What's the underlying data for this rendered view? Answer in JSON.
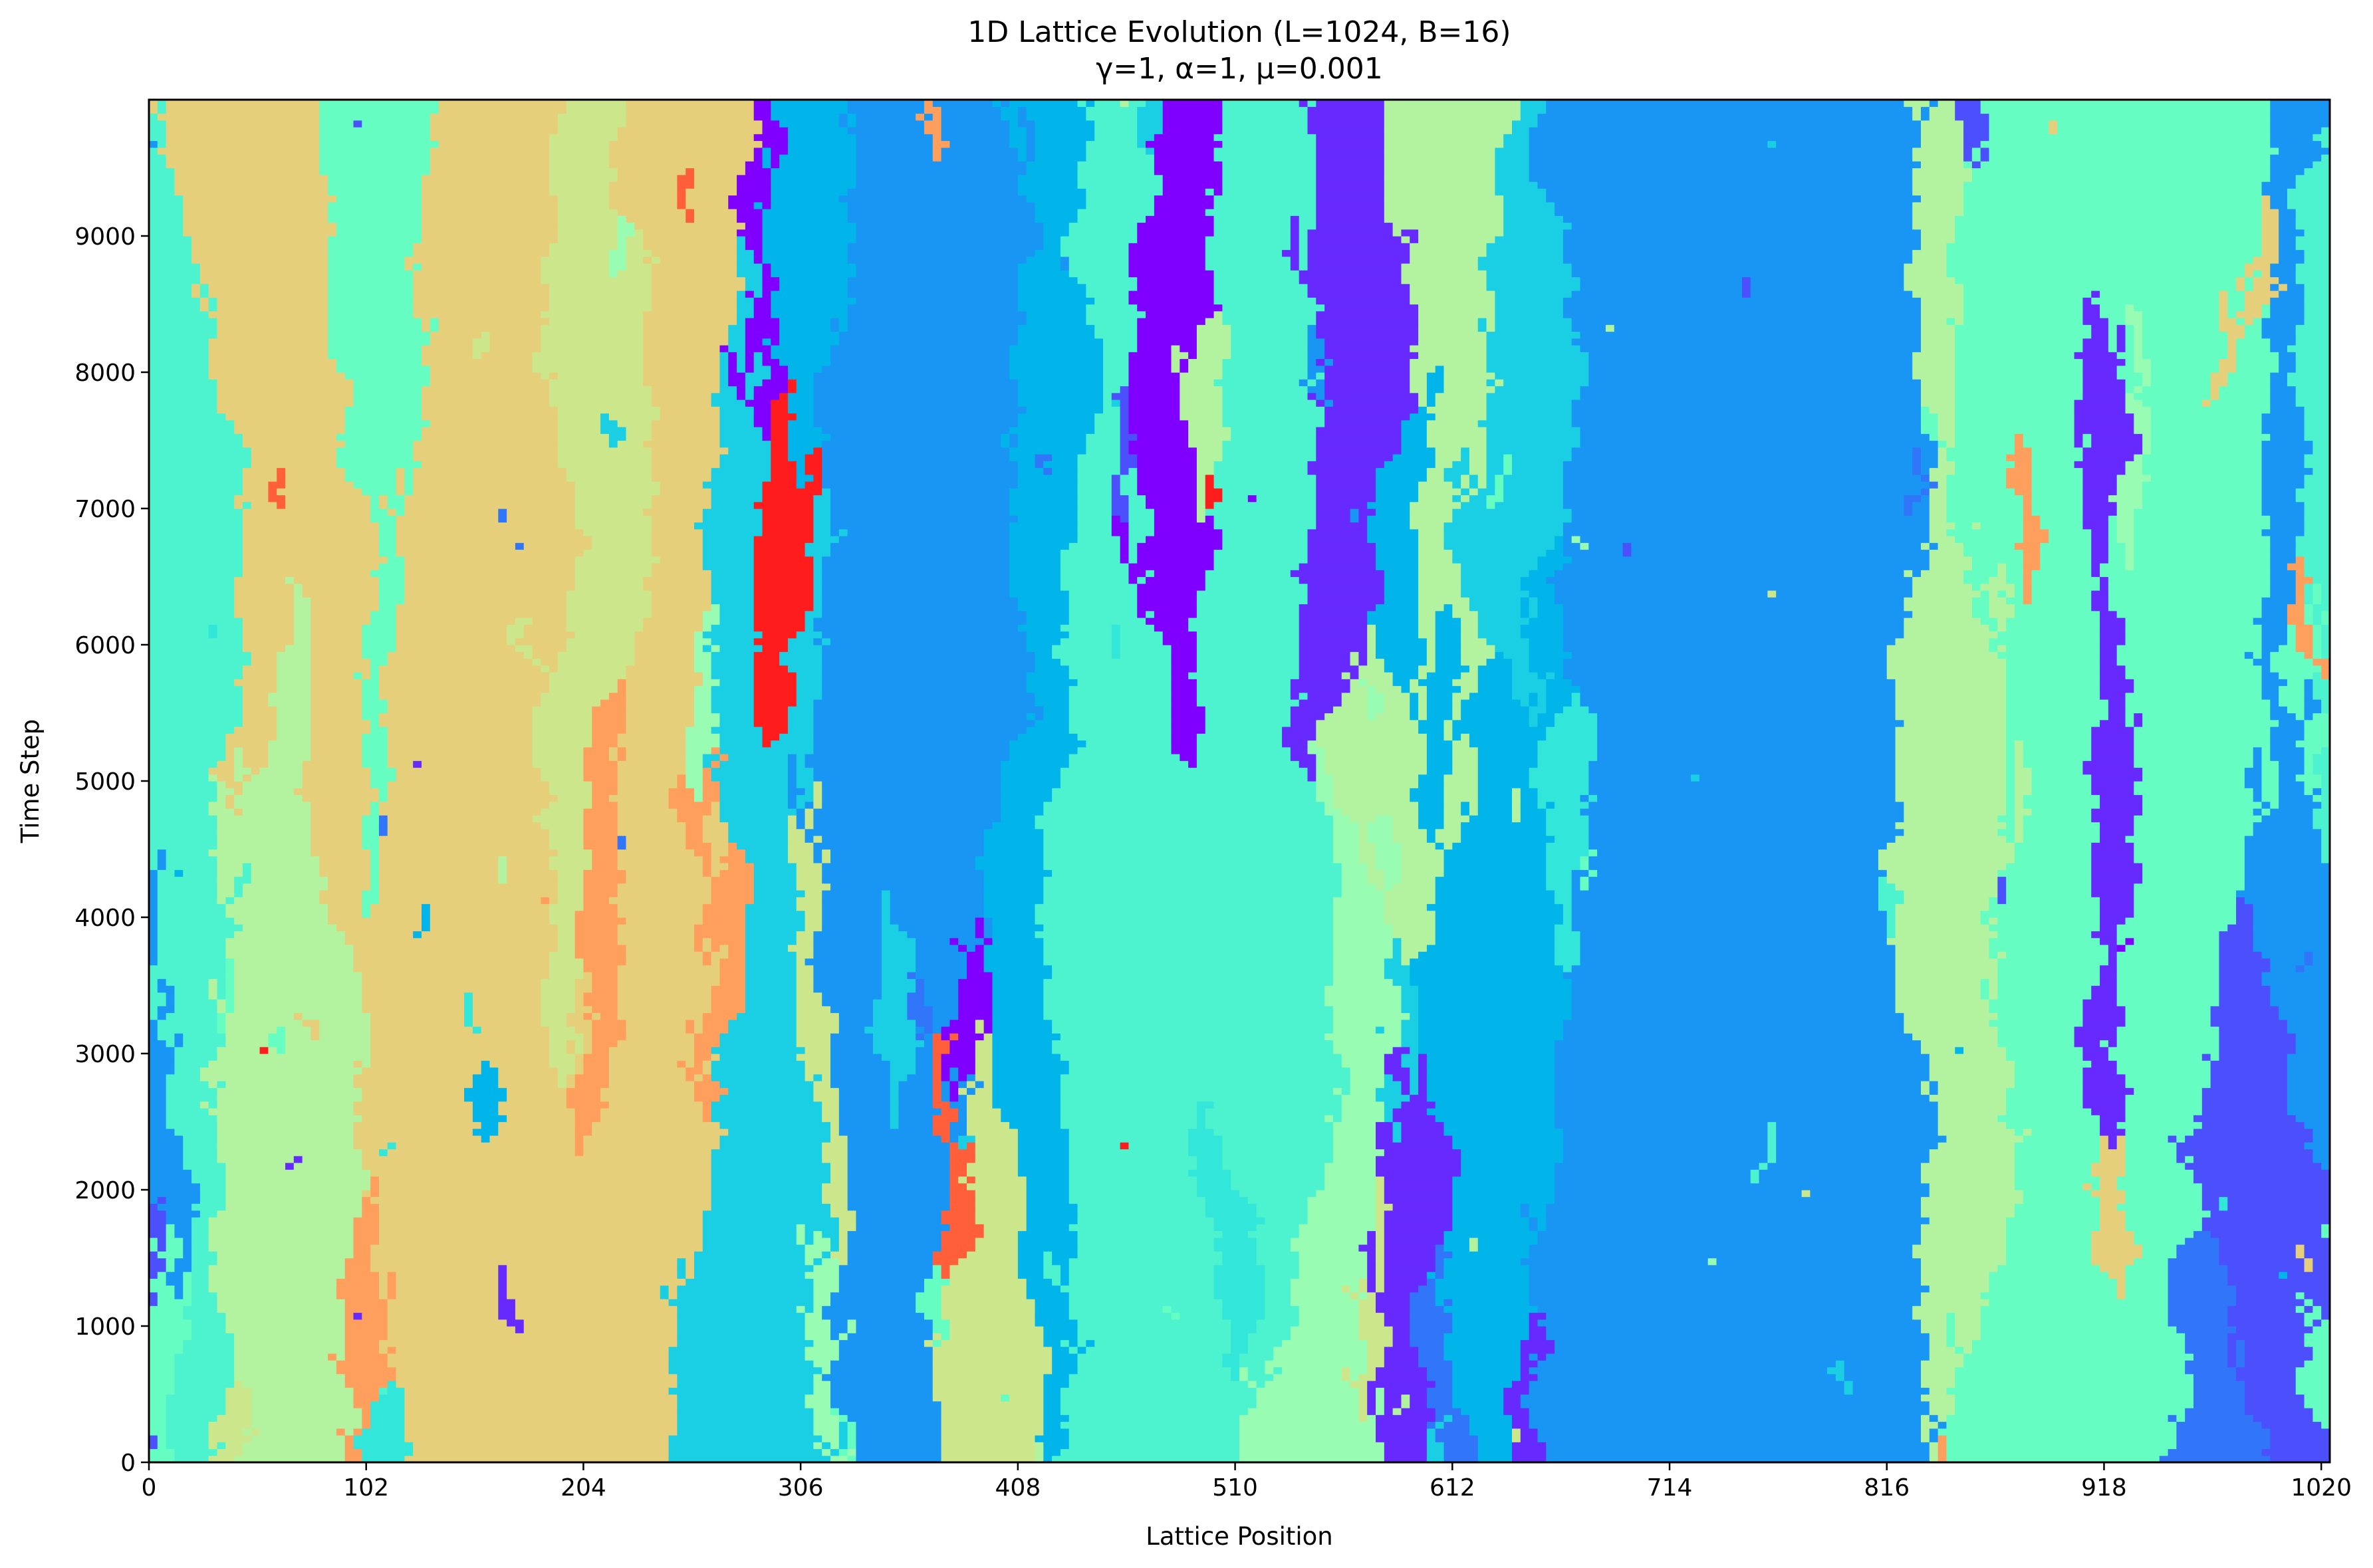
{
  "chart_data": {
    "type": "heatmap",
    "title": "1D Lattice Evolution (L=1024, B=16)",
    "subtitle": "γ=1, α=1, μ=0.001",
    "xlabel": "Lattice Position",
    "ylabel": "Time Step",
    "xlim": [
      0,
      1024
    ],
    "ylim": [
      0,
      10000
    ],
    "x_ticks": [
      0,
      102,
      204,
      306,
      408,
      510,
      612,
      714,
      816,
      918,
      1020
    ],
    "y_ticks": [
      0,
      1000,
      2000,
      3000,
      4000,
      5000,
      6000,
      7000,
      8000,
      9000
    ],
    "num_states": 16,
    "colormap": "rainbow",
    "palette": [
      "#8000ff",
      "#6629fe",
      "#4c50fc",
      "#3176f8",
      "#1996f3",
      "#01b5eb",
      "#1acfe3",
      "#33e6da",
      "#4df3ce",
      "#66fdc3",
      "#99fcb3",
      "#b3f3a0",
      "#cce68b",
      "#e6cf7a",
      "#ff9f5e",
      "#ff5f3a",
      "#ff1c1c"
    ],
    "grid": false,
    "legend": "none"
  }
}
